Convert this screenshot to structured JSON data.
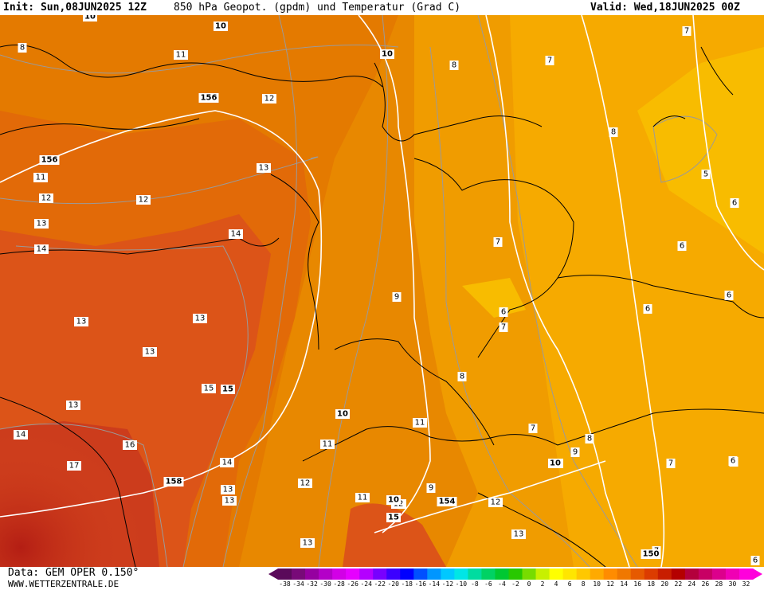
{
  "header": {
    "init": "Init: Sun,08JUN2025 12Z",
    "title": "850 hPa Geopot. (gpdm) und Temperatur (Grad C)",
    "valid": "Valid: Wed,18JUN2025 00Z"
  },
  "footer": {
    "data_source": "Data: GEM OPER 0.150°",
    "website": "WWW.WETTERZENTRALE.DE"
  },
  "legend": {
    "unit": "Grad C",
    "ticks": [
      "-38",
      "-34",
      "-32",
      "-30",
      "-28",
      "-26",
      "-24",
      "-22",
      "-20",
      "-18",
      "-16",
      "-14",
      "-12",
      "-10",
      "-8",
      "-6",
      "-4",
      "-2",
      "0",
      "2",
      "4",
      "6",
      "8",
      "10",
      "12",
      "14",
      "16",
      "18",
      "20",
      "22",
      "24",
      "26",
      "28",
      "30",
      "32"
    ],
    "colors": [
      "#5a0a5a",
      "#780a78",
      "#9600a0",
      "#b400c8",
      "#d200e6",
      "#e600ff",
      "#b400ff",
      "#7800ff",
      "#3c00ff",
      "#0000ff",
      "#0050ff",
      "#0096ff",
      "#00c8ff",
      "#00e6e6",
      "#00dca0",
      "#00d264",
      "#00c832",
      "#28c800",
      "#78dc00",
      "#c8f000",
      "#ffff00",
      "#ffe600",
      "#ffc800",
      "#ffaa00",
      "#ff8c00",
      "#f07800",
      "#e65a00",
      "#dc3c00",
      "#c81e00",
      "#b40000",
      "#b4003c",
      "#c80064",
      "#dc008c",
      "#f000b4",
      "#ff00dc"
    ]
  },
  "map": {
    "temperature_labels": [
      "8",
      "11",
      "12",
      "13",
      "12",
      "11",
      "12",
      "13",
      "14",
      "14",
      "13",
      "13",
      "13",
      "13",
      "14",
      "15",
      "16",
      "17",
      "14",
      "13",
      "13",
      "13",
      "11",
      "12",
      "11",
      "12",
      "13",
      "12",
      "9",
      "8",
      "7",
      "7",
      "6",
      "7",
      "8",
      "7",
      "8",
      "9",
      "10",
      "9",
      "11",
      "12",
      "8",
      "7",
      "6",
      "5",
      "6",
      "6",
      "6",
      "6",
      "6",
      "7",
      "6",
      "7"
    ],
    "geopotential_labels": [
      "10",
      "10",
      "156",
      "156",
      "10",
      "15",
      "10",
      "10",
      "158",
      "154",
      "15",
      "10",
      "150"
    ]
  }
}
